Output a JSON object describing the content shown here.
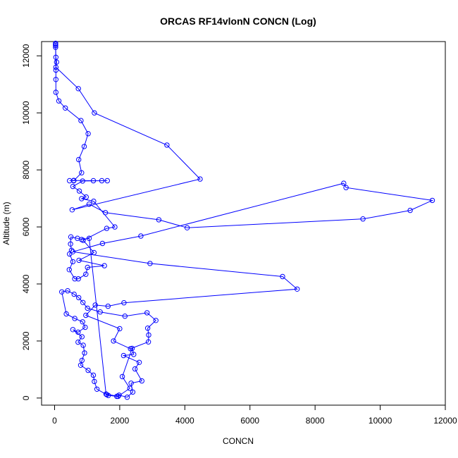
{
  "chart_data": {
    "type": "scatter",
    "title": "ORCAS RF14vlonN CONCN (Log)",
    "xlabel": "CONCN",
    "ylabel": "Altitude (m)",
    "xlim": [
      -400,
      12000
    ],
    "ylim": [
      -250,
      12500
    ],
    "xticks": [
      0,
      2000,
      4000,
      6000,
      8000,
      10000,
      12000
    ],
    "yticks": [
      0,
      2000,
      4000,
      6000,
      8000,
      10000,
      12000
    ],
    "grid": false,
    "color": "#0000ff",
    "series": [
      {
        "points": [
          [
            30,
            12440
          ],
          [
            30,
            12400
          ],
          [
            30,
            12360
          ],
          [
            40,
            11950
          ],
          [
            60,
            11780
          ],
          [
            40,
            11600
          ],
          [
            730,
            10850
          ],
          [
            1220,
            10000
          ],
          [
            3450,
            8870
          ],
          [
            4470,
            7680
          ],
          [
            540,
            6600
          ],
          [
            1060,
            6800
          ],
          [
            1560,
            6500
          ],
          [
            3200,
            6250
          ],
          [
            4070,
            5970
          ],
          [
            9470,
            6280
          ],
          [
            10920,
            6580
          ],
          [
            11600,
            6930
          ],
          [
            8950,
            7380
          ],
          [
            8880,
            7530
          ],
          [
            2650,
            5680
          ],
          [
            1470,
            5420
          ],
          [
            560,
            5130
          ],
          [
            2930,
            4720
          ],
          [
            7000,
            4260
          ],
          [
            7450,
            3820
          ],
          [
            2130,
            3340
          ],
          [
            1640,
            3220
          ],
          [
            1250,
            3260
          ],
          [
            960,
            2900
          ],
          [
            2000,
            2430
          ],
          [
            1810,
            2000
          ],
          [
            2330,
            1730
          ],
          [
            2880,
            1970
          ],
          [
            2890,
            2210
          ],
          [
            2860,
            2450
          ],
          [
            3110,
            2720
          ],
          [
            2840,
            2990
          ],
          [
            2160,
            2870
          ],
          [
            1400,
            3020
          ],
          [
            1010,
            3150
          ],
          [
            870,
            3350
          ],
          [
            740,
            3520
          ],
          [
            600,
            3640
          ],
          [
            400,
            3760
          ],
          [
            220,
            3720
          ],
          [
            360,
            2950
          ],
          [
            620,
            2790
          ],
          [
            860,
            2670
          ],
          [
            940,
            2480
          ],
          [
            720,
            2310
          ],
          [
            560,
            2400
          ],
          [
            840,
            2150
          ],
          [
            720,
            1960
          ],
          [
            880,
            1850
          ],
          [
            920,
            1580
          ],
          [
            840,
            1320
          ],
          [
            800,
            1150
          ],
          [
            1030,
            970
          ],
          [
            1190,
            800
          ],
          [
            1220,
            580
          ],
          [
            1300,
            310
          ],
          [
            1600,
            120
          ],
          [
            1650,
            90
          ],
          [
            1910,
            60
          ],
          [
            1980,
            100
          ],
          [
            2230,
            30
          ],
          [
            2400,
            210
          ],
          [
            2350,
            520
          ],
          [
            2680,
            600
          ],
          [
            2470,
            1020
          ],
          [
            2600,
            1250
          ],
          [
            2120,
            1490
          ],
          [
            2430,
            1530
          ],
          [
            2380,
            1740
          ],
          [
            2080,
            750
          ],
          [
            2310,
            340
          ],
          [
            1950,
            60
          ],
          [
            1580,
            140
          ],
          [
            1060,
            5600
          ],
          [
            830,
            5560
          ],
          [
            700,
            5600
          ],
          [
            500,
            5650
          ],
          [
            490,
            5400
          ],
          [
            520,
            5180
          ],
          [
            460,
            5050
          ],
          [
            560,
            4780
          ],
          [
            450,
            4500
          ],
          [
            620,
            4180
          ],
          [
            730,
            4180
          ],
          [
            960,
            4340
          ],
          [
            1010,
            4580
          ],
          [
            1530,
            4640
          ],
          [
            750,
            4830
          ],
          [
            1210,
            5100
          ],
          [
            880,
            5530
          ],
          [
            1600,
            5950
          ],
          [
            1850,
            6000
          ],
          [
            1200,
            6900
          ],
          [
            830,
            6990
          ],
          [
            970,
            7050
          ],
          [
            760,
            7260
          ],
          [
            560,
            7420
          ],
          [
            860,
            7610
          ],
          [
            1450,
            7620
          ],
          [
            1620,
            7620
          ],
          [
            1190,
            7620
          ],
          [
            590,
            7630
          ],
          [
            460,
            7620
          ],
          [
            590,
            7620
          ],
          [
            830,
            7900
          ],
          [
            740,
            8360
          ],
          [
            910,
            8820
          ],
          [
            1030,
            9270
          ],
          [
            810,
            9730
          ],
          [
            330,
            10170
          ],
          [
            130,
            10420
          ],
          [
            40,
            10720
          ],
          [
            40,
            11170
          ],
          [
            40,
            11500
          ],
          [
            30,
            12300
          ]
        ]
      }
    ]
  }
}
